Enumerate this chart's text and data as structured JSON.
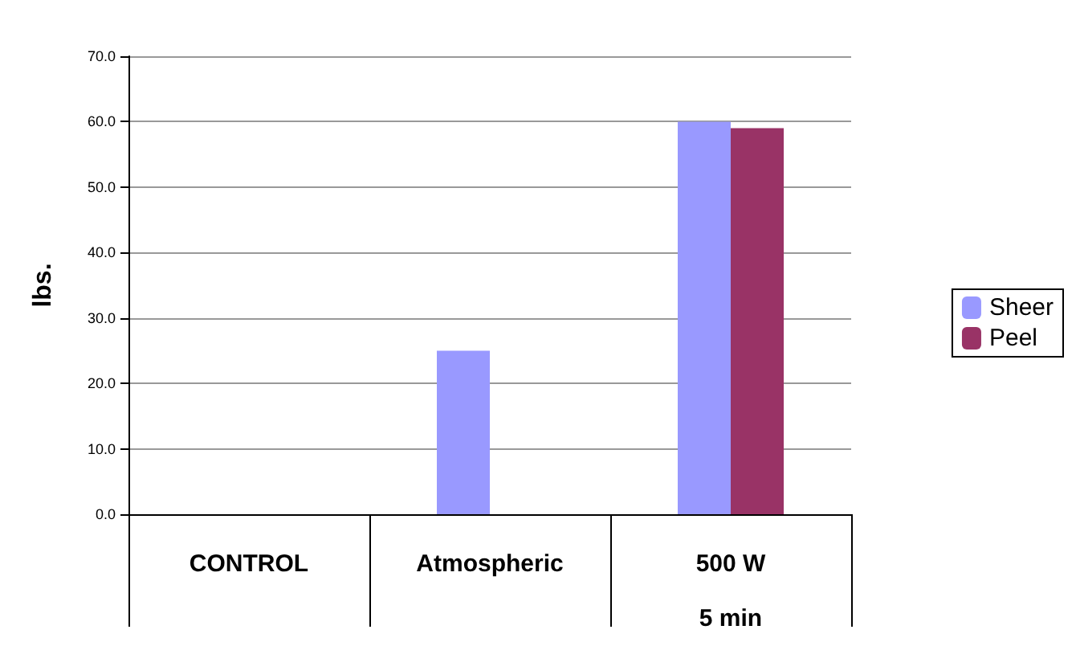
{
  "chart_data": {
    "type": "bar",
    "ylabel": "lbs.",
    "categories": [
      "CONTROL",
      "Atmospheric",
      "500 W\n5 min"
    ],
    "series": [
      {
        "name": "Sheer",
        "color": "#9999ff",
        "values": [
          0,
          25,
          60
        ]
      },
      {
        "name": "Peel",
        "color": "#993366",
        "values": [
          0,
          0,
          59
        ]
      }
    ],
    "ylim": [
      0,
      70
    ],
    "yticks": [
      {
        "value": 0,
        "label": "0.0"
      },
      {
        "value": 10,
        "label": "10.0"
      },
      {
        "value": 20,
        "label": "20.0"
      },
      {
        "value": 30,
        "label": "30.0"
      },
      {
        "value": 40,
        "label": "40.0"
      },
      {
        "value": 50,
        "label": "50.0"
      },
      {
        "value": 60,
        "label": "60.0"
      },
      {
        "value": 70,
        "label": "70.0"
      }
    ],
    "grid": "y",
    "legend": "right"
  }
}
